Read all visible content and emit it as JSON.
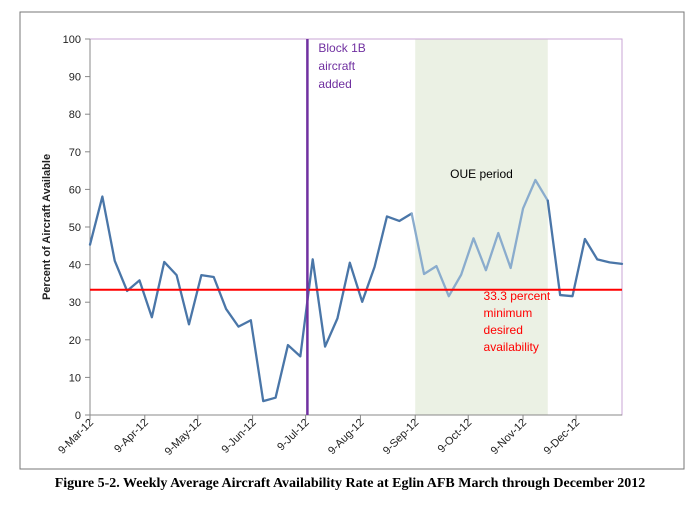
{
  "caption": "Figure 5-2.  Weekly Average Aircraft Availability Rate at Eglin AFB March through December 2012",
  "chart_data": {
    "type": "line",
    "ylabel": "Percent of Aircraft Available",
    "ylim": [
      0,
      100
    ],
    "yticks": [
      0,
      10,
      20,
      30,
      40,
      50,
      60,
      70,
      80,
      90,
      100
    ],
    "xlim": [
      "2012-03-09",
      "2013-01-04"
    ],
    "xticks": [
      {
        "label": "9-Mar-12",
        "date": "2012-03-09"
      },
      {
        "label": "9-Apr-12",
        "date": "2012-04-09"
      },
      {
        "label": "9-May-12",
        "date": "2012-05-09"
      },
      {
        "label": "9-Jun-12",
        "date": "2012-06-09"
      },
      {
        "label": "9-Jul-12",
        "date": "2012-07-09"
      },
      {
        "label": "9-Aug-12",
        "date": "2012-08-09"
      },
      {
        "label": "9-Sep-12",
        "date": "2012-09-09"
      },
      {
        "label": "9-Oct-12",
        "date": "2012-10-09"
      },
      {
        "label": "9-Nov-12",
        "date": "2012-11-09"
      },
      {
        "label": "9-Dec-12",
        "date": "2012-12-09"
      }
    ],
    "grid": false,
    "series": [
      {
        "color": "#4a76a8",
        "x": [
          "2012-03-09",
          "2012-03-16",
          "2012-03-23",
          "2012-03-30",
          "2012-04-06",
          "2012-04-13",
          "2012-04-20",
          "2012-04-27",
          "2012-05-04",
          "2012-05-11",
          "2012-05-18",
          "2012-05-25",
          "2012-06-01",
          "2012-06-08",
          "2012-06-15",
          "2012-06-22",
          "2012-06-29",
          "2012-07-06",
          "2012-07-13",
          "2012-07-20",
          "2012-07-27",
          "2012-08-03",
          "2012-08-10",
          "2012-08-17",
          "2012-08-24",
          "2012-08-31",
          "2012-09-07"
        ],
        "y": [
          45.3,
          58.1,
          41.0,
          33.0,
          35.8,
          26.0,
          40.7,
          37.2,
          24.1,
          37.2,
          36.7,
          28.2,
          23.5,
          25.2,
          3.7,
          4.6,
          18.6,
          15.6,
          41.4,
          18.2,
          25.7,
          40.5,
          30.1,
          39.4,
          52.8,
          51.6,
          53.6
        ]
      },
      {
        "color": "#8aaccd",
        "x": [
          "2012-09-07",
          "2012-09-14",
          "2012-09-21",
          "2012-09-28",
          "2012-10-05",
          "2012-10-12",
          "2012-10-19",
          "2012-10-26",
          "2012-11-02",
          "2012-11-09",
          "2012-11-16",
          "2012-11-23"
        ],
        "y": [
          53.6,
          37.5,
          39.6,
          31.6,
          37.3,
          47.0,
          38.5,
          48.4,
          39.1,
          54.9,
          62.5,
          57.0
        ]
      },
      {
        "color": "#4a76a8",
        "x": [
          "2012-11-23",
          "2012-11-30",
          "2012-12-07",
          "2012-12-14",
          "2012-12-21",
          "2012-12-28",
          "2013-01-04"
        ],
        "y": [
          57.0,
          31.9,
          31.6,
          46.8,
          41.4,
          40.6,
          40.2
        ]
      }
    ],
    "annotations": {
      "block": {
        "text_lines": [
          "Block 1B",
          "aircraft",
          "added"
        ],
        "date": "2012-07-10",
        "color": "#7030a0"
      },
      "oue": {
        "text": "OUE period",
        "start": "2012-09-09",
        "end": "2012-11-23",
        "color": "#ebf1e4"
      },
      "min": {
        "text_lines": [
          "33.3 percent",
          "minimum",
          "desired",
          "availability"
        ],
        "value": 33.3,
        "color": "#ff0000"
      }
    }
  }
}
